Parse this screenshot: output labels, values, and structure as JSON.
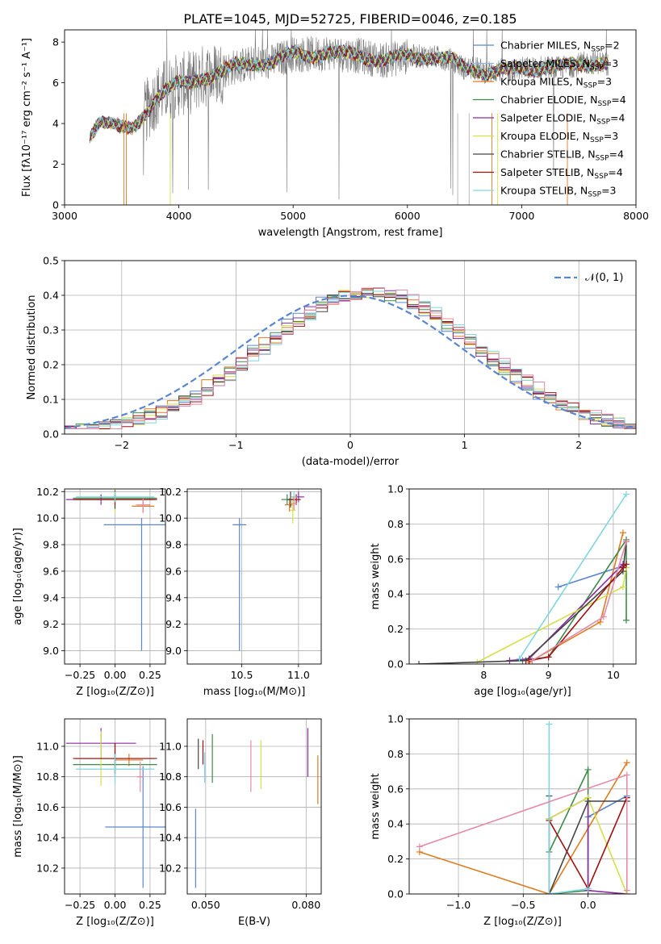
{
  "figure_title": "PLATE=1045, MJD=52725, FIBERID=0046, z=0.185",
  "colors": {
    "Chabrier MILES": "#5a86d0",
    "Salpeter MILES": "#8fb8e8",
    "Kroupa MILES": "#e07b20",
    "Chabrier ELODIE": "#3e8a48",
    "Salpeter ELODIE": "#8b2ca0",
    "Kroupa ELODIE": "#d4e04a",
    "Chabrier STELIB": "#444444",
    "Salpeter STELIB": "#a01010",
    "Kroupa STELIB": "#7fd6dd",
    "pink": "#e58aaa",
    "observed": "#777777",
    "gaussian": "#5a86d0",
    "grid": "#b0b0b0"
  },
  "chart_data": [
    {
      "id": "spectrum",
      "type": "line",
      "xlabel": "wavelength [Angstrom, rest frame]",
      "ylabel": "Flux [fλ10⁻¹⁷ erg cm⁻² s⁻¹ A⁻¹]",
      "xlim": [
        3000,
        8000
      ],
      "ylim": [
        0,
        8.6
      ],
      "xticks": [
        3000,
        4000,
        5000,
        6000,
        7000,
        8000
      ],
      "yticks": [
        0,
        2,
        4,
        6,
        8
      ],
      "grid": false,
      "legend_position": "top-right",
      "legend": [
        "Chabrier MILES, N_SSP=2",
        "Salpeter MILES, N_SSP=3",
        "Kroupa MILES, N_SSP=3",
        "Chabrier ELODIE, N_SSP=4",
        "Salpeter ELODIE, N_SSP=4",
        "Kroupa ELODIE, N_SSP=3",
        "Chabrier STELIB, N_SSP=4",
        "Salpeter STELIB, N_SSP=4",
        "Kroupa STELIB, N_SSP=3"
      ],
      "continuum": [
        [
          3220,
          3.4
        ],
        [
          3300,
          4.2
        ],
        [
          3400,
          4.0
        ],
        [
          3500,
          3.7
        ],
        [
          3600,
          3.7
        ],
        [
          3700,
          4.5
        ],
        [
          3800,
          5.3
        ],
        [
          3900,
          5.7
        ],
        [
          4000,
          5.9
        ],
        [
          4100,
          6.0
        ],
        [
          4200,
          6.3
        ],
        [
          4300,
          6.4
        ],
        [
          4400,
          6.6
        ],
        [
          4500,
          6.8
        ],
        [
          4600,
          6.9
        ],
        [
          4700,
          7.0
        ],
        [
          4800,
          7.0
        ],
        [
          4900,
          7.2
        ],
        [
          5000,
          7.4
        ],
        [
          5100,
          7.4
        ],
        [
          5200,
          7.4
        ],
        [
          5300,
          7.5
        ],
        [
          5400,
          7.4
        ],
        [
          5500,
          7.4
        ],
        [
          5600,
          7.3
        ],
        [
          5700,
          7.2
        ],
        [
          5800,
          7.1
        ],
        [
          5900,
          7.2
        ],
        [
          6000,
          7.3
        ],
        [
          6100,
          7.3
        ],
        [
          6200,
          7.3
        ],
        [
          6300,
          7.2
        ],
        [
          6400,
          7.1
        ],
        [
          6500,
          6.7
        ],
        [
          6600,
          6.7
        ],
        [
          6700,
          6.5
        ],
        [
          6800,
          6.6
        ],
        [
          6900,
          6.6
        ],
        [
          7000,
          6.7
        ],
        [
          7100,
          6.7
        ],
        [
          7200,
          6.8
        ],
        [
          7300,
          6.7
        ],
        [
          7400,
          6.8
        ],
        [
          7500,
          6.9
        ],
        [
          7600,
          7.0
        ],
        [
          7700,
          7.0
        ],
        [
          7760,
          6.9
        ]
      ]
    },
    {
      "id": "residual-hist",
      "type": "histogram",
      "xlabel": "(data-model)/error",
      "ylabel": "Normed distribution",
      "xlim": [
        -2.5,
        2.5
      ],
      "ylim": [
        0,
        0.5
      ],
      "xticks": [
        -2,
        -1,
        0,
        1,
        2
      ],
      "yticks": [
        0.0,
        0.1,
        0.2,
        0.3,
        0.4,
        0.5
      ],
      "grid": true,
      "legend_position": "top-right",
      "legend": [
        "𝒩(0, 1)"
      ]
    },
    {
      "id": "age-vs-Z",
      "type": "errorbar",
      "xlabel": "Z [log₁₀(Z/Z⊙)]",
      "ylabel": "age  [log₁₀(age/yr)]",
      "xlim": [
        -0.36,
        0.36
      ],
      "ylim": [
        8.9,
        10.22
      ],
      "xticks": [
        -0.25,
        0.0,
        0.25
      ],
      "yticks": [
        9.0,
        9.2,
        9.4,
        9.6,
        9.8,
        10.0,
        10.2
      ],
      "grid": true,
      "points": [
        {
          "model": "Chabrier MILES",
          "x": 0.19,
          "y": 9.95,
          "xerr": 0.54,
          "yerr": [
            0.95,
            0.05
          ]
        },
        {
          "model": "Salpeter MILES",
          "x": 0.0,
          "y": 10.15,
          "xerr": 0.58,
          "yerr": 0.03
        },
        {
          "model": "Kroupa MILES",
          "x": 0.2,
          "y": 10.09,
          "xerr": 0.16,
          "yerr": 0.05
        },
        {
          "model": "Chabrier ELODIE",
          "x": 0.0,
          "y": 10.15,
          "xerr": 0.6,
          "yerr": 0.03
        },
        {
          "model": "Salpeter ELODIE",
          "x": -0.1,
          "y": 10.14,
          "xerr": 0.5,
          "yerr": 0.04
        },
        {
          "model": "Kroupa ELODIE",
          "x": 0.0,
          "y": 10.14,
          "xerr": 0.55,
          "yerr": 0.1
        },
        {
          "model": "Chabrier STELIB",
          "x": 0.0,
          "y": 10.14,
          "xerr": 0.56,
          "yerr": 0.07
        },
        {
          "model": "Salpeter STELIB",
          "x": 0.0,
          "y": 10.14,
          "xerr": 0.6,
          "yerr": 0.04
        },
        {
          "model": "Kroupa STELIB",
          "x": 0.0,
          "y": 10.16,
          "xerr": 0.56,
          "yerr": 0.04
        },
        {
          "model": "pink",
          "x": 0.2,
          "y": 10.1,
          "xerr": 0.1,
          "yerr": 0.05
        }
      ]
    },
    {
      "id": "age-vs-mass",
      "type": "errorbar",
      "xlabel": "mass [log₁₀(M/M⊙)]",
      "ylabel": "",
      "xlim": [
        10.02,
        11.2
      ],
      "ylim": [
        8.9,
        10.22
      ],
      "xticks": [
        10.5,
        11.0
      ],
      "yticks": [
        9.0,
        9.2,
        9.4,
        9.6,
        9.8,
        10.0,
        10.2
      ],
      "grid": true,
      "points": [
        {
          "model": "Chabrier MILES",
          "x": 10.48,
          "y": 9.95,
          "xerr": 0.12,
          "yerr": [
            0.95,
            0.05
          ]
        },
        {
          "model": "Kroupa MILES",
          "x": 10.92,
          "y": 10.1,
          "xerr": 0.08,
          "yerr": 0.05
        },
        {
          "model": "Chabrier ELODIE",
          "x": 10.9,
          "y": 10.14,
          "xerr": 0.1,
          "yerr": 0.04
        },
        {
          "model": "Salpeter ELODIE",
          "x": 11.0,
          "y": 10.16,
          "xerr": 0.1,
          "yerr": 0.04
        },
        {
          "model": "Kroupa ELODIE",
          "x": 10.95,
          "y": 10.06,
          "xerr": 0.05,
          "yerr": 0.1
        },
        {
          "model": "Chabrier STELIB",
          "x": 10.93,
          "y": 10.14,
          "xerr": 0.06,
          "yerr": 0.06
        },
        {
          "model": "Salpeter STELIB",
          "x": 10.98,
          "y": 10.14,
          "xerr": 0.08,
          "yerr": 0.04
        },
        {
          "model": "Kroupa STELIB",
          "x": 10.96,
          "y": 10.16,
          "xerr": 0.05,
          "yerr": 0.04
        },
        {
          "model": "pink",
          "x": 10.96,
          "y": 10.11,
          "xerr": 0.05,
          "yerr": 0.05
        }
      ]
    },
    {
      "id": "weight-vs-age",
      "type": "line",
      "xlabel": "age  [log₁₀(age/yr)]",
      "ylabel": "mass weight",
      "xlim": [
        6.85,
        10.35
      ],
      "ylim": [
        0,
        1.0
      ],
      "xticks": [
        8,
        9,
        10
      ],
      "yticks": [
        0.0,
        0.2,
        0.4,
        0.6,
        0.8,
        1.0
      ],
      "grid": true,
      "series": [
        {
          "model": "Chabrier MILES",
          "x": [
            9.15,
            10.15
          ],
          "y": [
            0.44,
            0.56
          ]
        },
        {
          "model": "Kroupa MILES",
          "x": [
            8.7,
            9.8,
            10.15
          ],
          "y": [
            0.01,
            0.24,
            0.75
          ]
        },
        {
          "model": "Chabrier ELODIE",
          "x": [
            8.6,
            9.0,
            10.2,
            10.2
          ],
          "y": [
            0.02,
            0.04,
            0.71,
            0.25
          ]
        },
        {
          "model": "Salpeter ELODIE",
          "x": [
            8.4,
            8.7,
            10.15
          ],
          "y": [
            0.02,
            0.03,
            0.57
          ]
        },
        {
          "model": "Kroupa ELODIE",
          "x": [
            7.9,
            10.15,
            10.2
          ],
          "y": [
            0.01,
            0.44,
            0.55
          ]
        },
        {
          "model": "Chabrier STELIB",
          "x": [
            7.0,
            8.65,
            10.15,
            10.2
          ],
          "y": [
            0.0,
            0.02,
            0.53,
            0.7
          ]
        },
        {
          "model": "Salpeter STELIB",
          "x": [
            8.7,
            9.0,
            10.15,
            10.2
          ],
          "y": [
            0.02,
            0.04,
            0.55,
            0.57
          ]
        },
        {
          "model": "Kroupa STELIB",
          "x": [
            8.55,
            10.2
          ],
          "y": [
            0.03,
            0.97
          ]
        },
        {
          "model": "pink",
          "x": [
            8.75,
            9.85,
            10.2
          ],
          "y": [
            0.02,
            0.27,
            0.7
          ]
        }
      ]
    },
    {
      "id": "mass-vs-Z",
      "type": "errorbar",
      "xlabel": "Z [log₁₀(Z/Z⊙)]",
      "ylabel": "mass [log₁₀(M/M⊙)]",
      "xlim": [
        -0.36,
        0.36
      ],
      "ylim": [
        10.03,
        11.18
      ],
      "xticks": [
        -0.25,
        0.0,
        0.25
      ],
      "yticks": [
        10.2,
        10.4,
        10.6,
        10.8,
        11.0
      ],
      "grid": true,
      "points": [
        {
          "model": "Chabrier MILES",
          "x": 0.2,
          "y": 10.47,
          "xerr": 0.54,
          "yerr": 0.4
        },
        {
          "model": "Kroupa MILES",
          "x": 0.1,
          "y": 10.91,
          "xerr": 0.2,
          "yerr": 0.04
        },
        {
          "model": "Chabrier ELODIE",
          "x": 0.0,
          "y": 10.88,
          "xerr": 0.6,
          "yerr": 0.08
        },
        {
          "model": "Salpeter ELODIE",
          "x": -0.1,
          "y": 11.02,
          "xerr": 0.5,
          "yerr": 0.1
        },
        {
          "model": "Kroupa ELODIE",
          "x": -0.1,
          "y": 10.92,
          "xerr": 0.4,
          "yerr": 0.18
        },
        {
          "model": "Chabrier STELIB",
          "x": 0.0,
          "y": 10.92,
          "xerr": 0.56,
          "yerr": 0.1
        },
        {
          "model": "Salpeter STELIB",
          "x": 0.0,
          "y": 10.92,
          "xerr": 0.6,
          "yerr": 0.1
        },
        {
          "model": "Kroupa STELIB",
          "x": 0.0,
          "y": 10.85,
          "xerr": 0.56,
          "yerr": 0.1
        },
        {
          "model": "pink",
          "x": 0.18,
          "y": 10.8,
          "xerr": 0.05,
          "yerr": 0.1
        }
      ]
    },
    {
      "id": "mass-vs-ebv",
      "type": "errorbar",
      "xlabel": "E(B-V)",
      "ylabel": "",
      "xlim": [
        0.0445,
        0.0845
      ],
      "ylim": [
        10.03,
        11.18
      ],
      "xticks": [
        0.05,
        0.08
      ],
      "yticks": [
        10.2,
        10.4,
        10.6,
        10.8,
        11.0
      ],
      "grid": true,
      "points": [
        {
          "model": "Chabrier MILES",
          "x": 0.047,
          "y": 10.33,
          "yerr": 0.26
        },
        {
          "model": "Chabrier STELIB",
          "x": 0.0478,
          "y": 10.95,
          "yerr": 0.1
        },
        {
          "model": "Salpeter STELIB",
          "x": 0.0492,
          "y": 10.96,
          "yerr": 0.08
        },
        {
          "model": "Kroupa STELIB",
          "x": 0.0497,
          "y": 10.86,
          "yerr": 0.1
        },
        {
          "model": "Chabrier ELODIE",
          "x": 0.052,
          "y": 10.92,
          "yerr": 0.16
        },
        {
          "model": "pink",
          "x": 0.0635,
          "y": 10.87,
          "yerr": 0.17
        },
        {
          "model": "Kroupa ELODIE",
          "x": 0.0665,
          "y": 10.88,
          "yerr": 0.16
        },
        {
          "model": "Salpeter ELODIE",
          "x": 0.0805,
          "y": 10.96,
          "yerr": 0.16
        },
        {
          "model": "Kroupa MILES",
          "x": 0.0835,
          "y": 10.78,
          "yerr": 0.16
        }
      ]
    },
    {
      "id": "weight-vs-Z",
      "type": "line",
      "xlabel": "Z [log₁₀(Z/Z⊙)]",
      "ylabel": "mass weight",
      "xlim": [
        -1.38,
        0.37
      ],
      "ylim": [
        0,
        1.0
      ],
      "xticks": [
        -1.0,
        -0.5,
        0.0
      ],
      "yticks": [
        0.0,
        0.2,
        0.4,
        0.6,
        0.8,
        1.0
      ],
      "grid": true,
      "series": [
        {
          "model": "Chabrier MILES",
          "x": [
            0.0,
            0.3
          ],
          "y": [
            0.44,
            0.56
          ]
        },
        {
          "model": "Kroupa MILES",
          "x": [
            -1.3,
            -0.3,
            0.3
          ],
          "y": [
            0.24,
            0.0,
            0.75
          ]
        },
        {
          "model": "Chabrier ELODIE",
          "x": [
            -0.3,
            0.0,
            0.0,
            -0.3
          ],
          "y": [
            0.24,
            0.71,
            0.02,
            0.0
          ]
        },
        {
          "model": "Salpeter ELODIE",
          "x": [
            -0.3,
            0.0,
            0.0,
            0.3
          ],
          "y": [
            0.43,
            0.55,
            0.02,
            0.0
          ]
        },
        {
          "model": "Kroupa ELODIE",
          "x": [
            -0.3,
            0.0,
            0.3
          ],
          "y": [
            0.43,
            0.55,
            0.0
          ]
        },
        {
          "model": "Chabrier STELIB",
          "x": [
            -0.3,
            -0.3,
            0.0,
            0.3
          ],
          "y": [
            0.56,
            0.0,
            0.53,
            0.53
          ]
        },
        {
          "model": "Salpeter STELIB",
          "x": [
            -0.3,
            0.0,
            0.3
          ],
          "y": [
            0.42,
            0.03,
            0.55
          ]
        },
        {
          "model": "Kroupa STELIB",
          "x": [
            -0.3,
            -0.3,
            0.0
          ],
          "y": [
            0.97,
            0.0,
            0.03
          ]
        },
        {
          "model": "pink",
          "x": [
            -1.3,
            0.3,
            0.3
          ],
          "y": [
            0.27,
            0.68,
            0.02
          ]
        }
      ]
    }
  ]
}
